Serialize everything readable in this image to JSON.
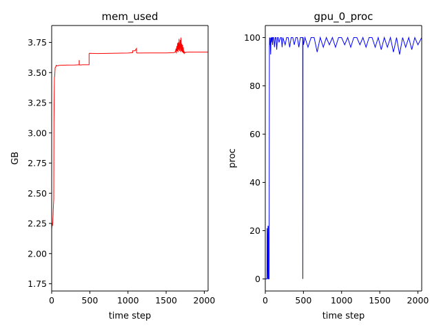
{
  "chart_data": [
    {
      "type": "line",
      "title": "mem_used",
      "xlabel": "time step",
      "ylabel": "GB",
      "xlim": [
        0,
        2050
      ],
      "ylim": [
        1.69,
        3.89
      ],
      "xticks": [
        0,
        500,
        1000,
        1500,
        2000
      ],
      "yticks": [
        1.75,
        2.0,
        2.25,
        2.5,
        2.75,
        3.0,
        3.25,
        3.5,
        3.75
      ],
      "ytick_labels": [
        "1.75",
        "2.00",
        "2.25",
        "2.50",
        "2.75",
        "3.00",
        "3.25",
        "3.50",
        "3.75"
      ],
      "grid": false,
      "color": "#ff0000",
      "series": [
        {
          "x": [
            0,
            5,
            10,
            14,
            18,
            22,
            27,
            30,
            33,
            36,
            40,
            45,
            55,
            60,
            70,
            100,
            200,
            300,
            360,
            360,
            362,
            362,
            380,
            400,
            490,
            490,
            495,
            600,
            800,
            1000,
            1060,
            1060,
            1080,
            1090,
            1100,
            1100,
            1112,
            1112,
            1120,
            1300,
            1500,
            1600,
            1620,
            1630,
            1635,
            1640,
            1645,
            1650,
            1655,
            1660,
            1665,
            1670,
            1675,
            1680,
            1685,
            1690,
            1695,
            1700,
            1705,
            1710,
            1715,
            1720,
            1725,
            1730,
            1735,
            1740,
            1745,
            1750,
            1755,
            1760,
            1770,
            1800,
            2050
          ],
          "y": [
            2.2,
            2.25,
            2.23,
            2.26,
            2.31,
            2.38,
            2.45,
            3.1,
            3.33,
            3.46,
            3.47,
            3.54,
            3.55,
            3.56,
            3.555,
            3.56,
            3.562,
            3.563,
            3.565,
            3.6,
            3.6,
            3.565,
            3.563,
            3.565,
            3.565,
            3.655,
            3.66,
            3.658,
            3.66,
            3.662,
            3.665,
            3.68,
            3.68,
            3.682,
            3.685,
            3.69,
            3.7,
            3.665,
            3.662,
            3.663,
            3.663,
            3.665,
            3.67,
            3.7,
            3.66,
            3.72,
            3.68,
            3.745,
            3.67,
            3.75,
            3.69,
            3.78,
            3.68,
            3.72,
            3.77,
            3.67,
            3.79,
            3.68,
            3.74,
            3.67,
            3.73,
            3.665,
            3.71,
            3.66,
            3.68,
            3.66,
            3.665,
            3.665,
            3.67,
            3.668,
            3.668,
            3.67,
            3.67
          ]
        }
      ]
    },
    {
      "type": "line",
      "title": "gpu_0_proc",
      "xlabel": "time step",
      "ylabel": "proc",
      "xlim": [
        0,
        2050
      ],
      "ylim": [
        -5,
        105
      ],
      "xticks": [
        0,
        500,
        1000,
        1500,
        2000
      ],
      "yticks": [
        0,
        20,
        40,
        60,
        80,
        100
      ],
      "ytick_labels": [
        "0",
        "20",
        "40",
        "60",
        "80",
        "100"
      ],
      "grid": false,
      "color": "#0000ff",
      "series": [
        {
          "x": [
            0,
            20,
            22,
            24,
            26,
            35,
            37,
            40,
            42,
            44,
            50,
            54,
            56,
            60,
            62,
            70,
            75,
            80,
            85,
            90,
            95,
            100,
            110,
            120,
            130,
            140,
            150,
            160,
            170,
            180,
            200,
            210,
            220,
            230,
            260,
            280,
            300,
            320,
            340,
            360,
            380,
            400,
            420,
            440,
            460,
            480,
            490,
            492,
            494,
            496,
            500,
            520,
            560,
            600,
            640,
            680,
            720,
            760,
            800,
            840,
            880,
            920,
            960,
            1000,
            1040,
            1080,
            1120,
            1160,
            1200,
            1240,
            1280,
            1320,
            1360,
            1400,
            1440,
            1480,
            1520,
            1560,
            1600,
            1640,
            1680,
            1720,
            1760,
            1800,
            1840,
            1880,
            1920,
            1960,
            2000,
            2050
          ],
          "y": [
            0,
            0,
            0,
            21,
            0,
            22,
            0,
            22,
            0,
            0,
            0,
            96,
            100,
            97,
            100,
            93,
            100,
            98,
            100,
            100,
            97,
            100,
            100,
            96,
            100,
            100,
            95,
            100,
            100,
            98,
            100,
            100,
            96,
            100,
            97,
            100,
            100,
            96,
            100,
            100,
            97,
            100,
            100,
            96,
            100,
            100,
            100,
            0,
            100,
            100,
            97,
            100,
            96,
            100,
            100,
            94,
            100,
            96,
            100,
            97,
            100,
            96,
            100,
            100,
            97,
            100,
            96,
            100,
            100,
            97,
            100,
            96,
            100,
            100,
            96,
            100,
            95,
            100,
            96,
            100,
            94,
            100,
            93,
            100,
            96,
            100,
            95,
            100,
            97,
            100
          ]
        }
      ]
    }
  ]
}
